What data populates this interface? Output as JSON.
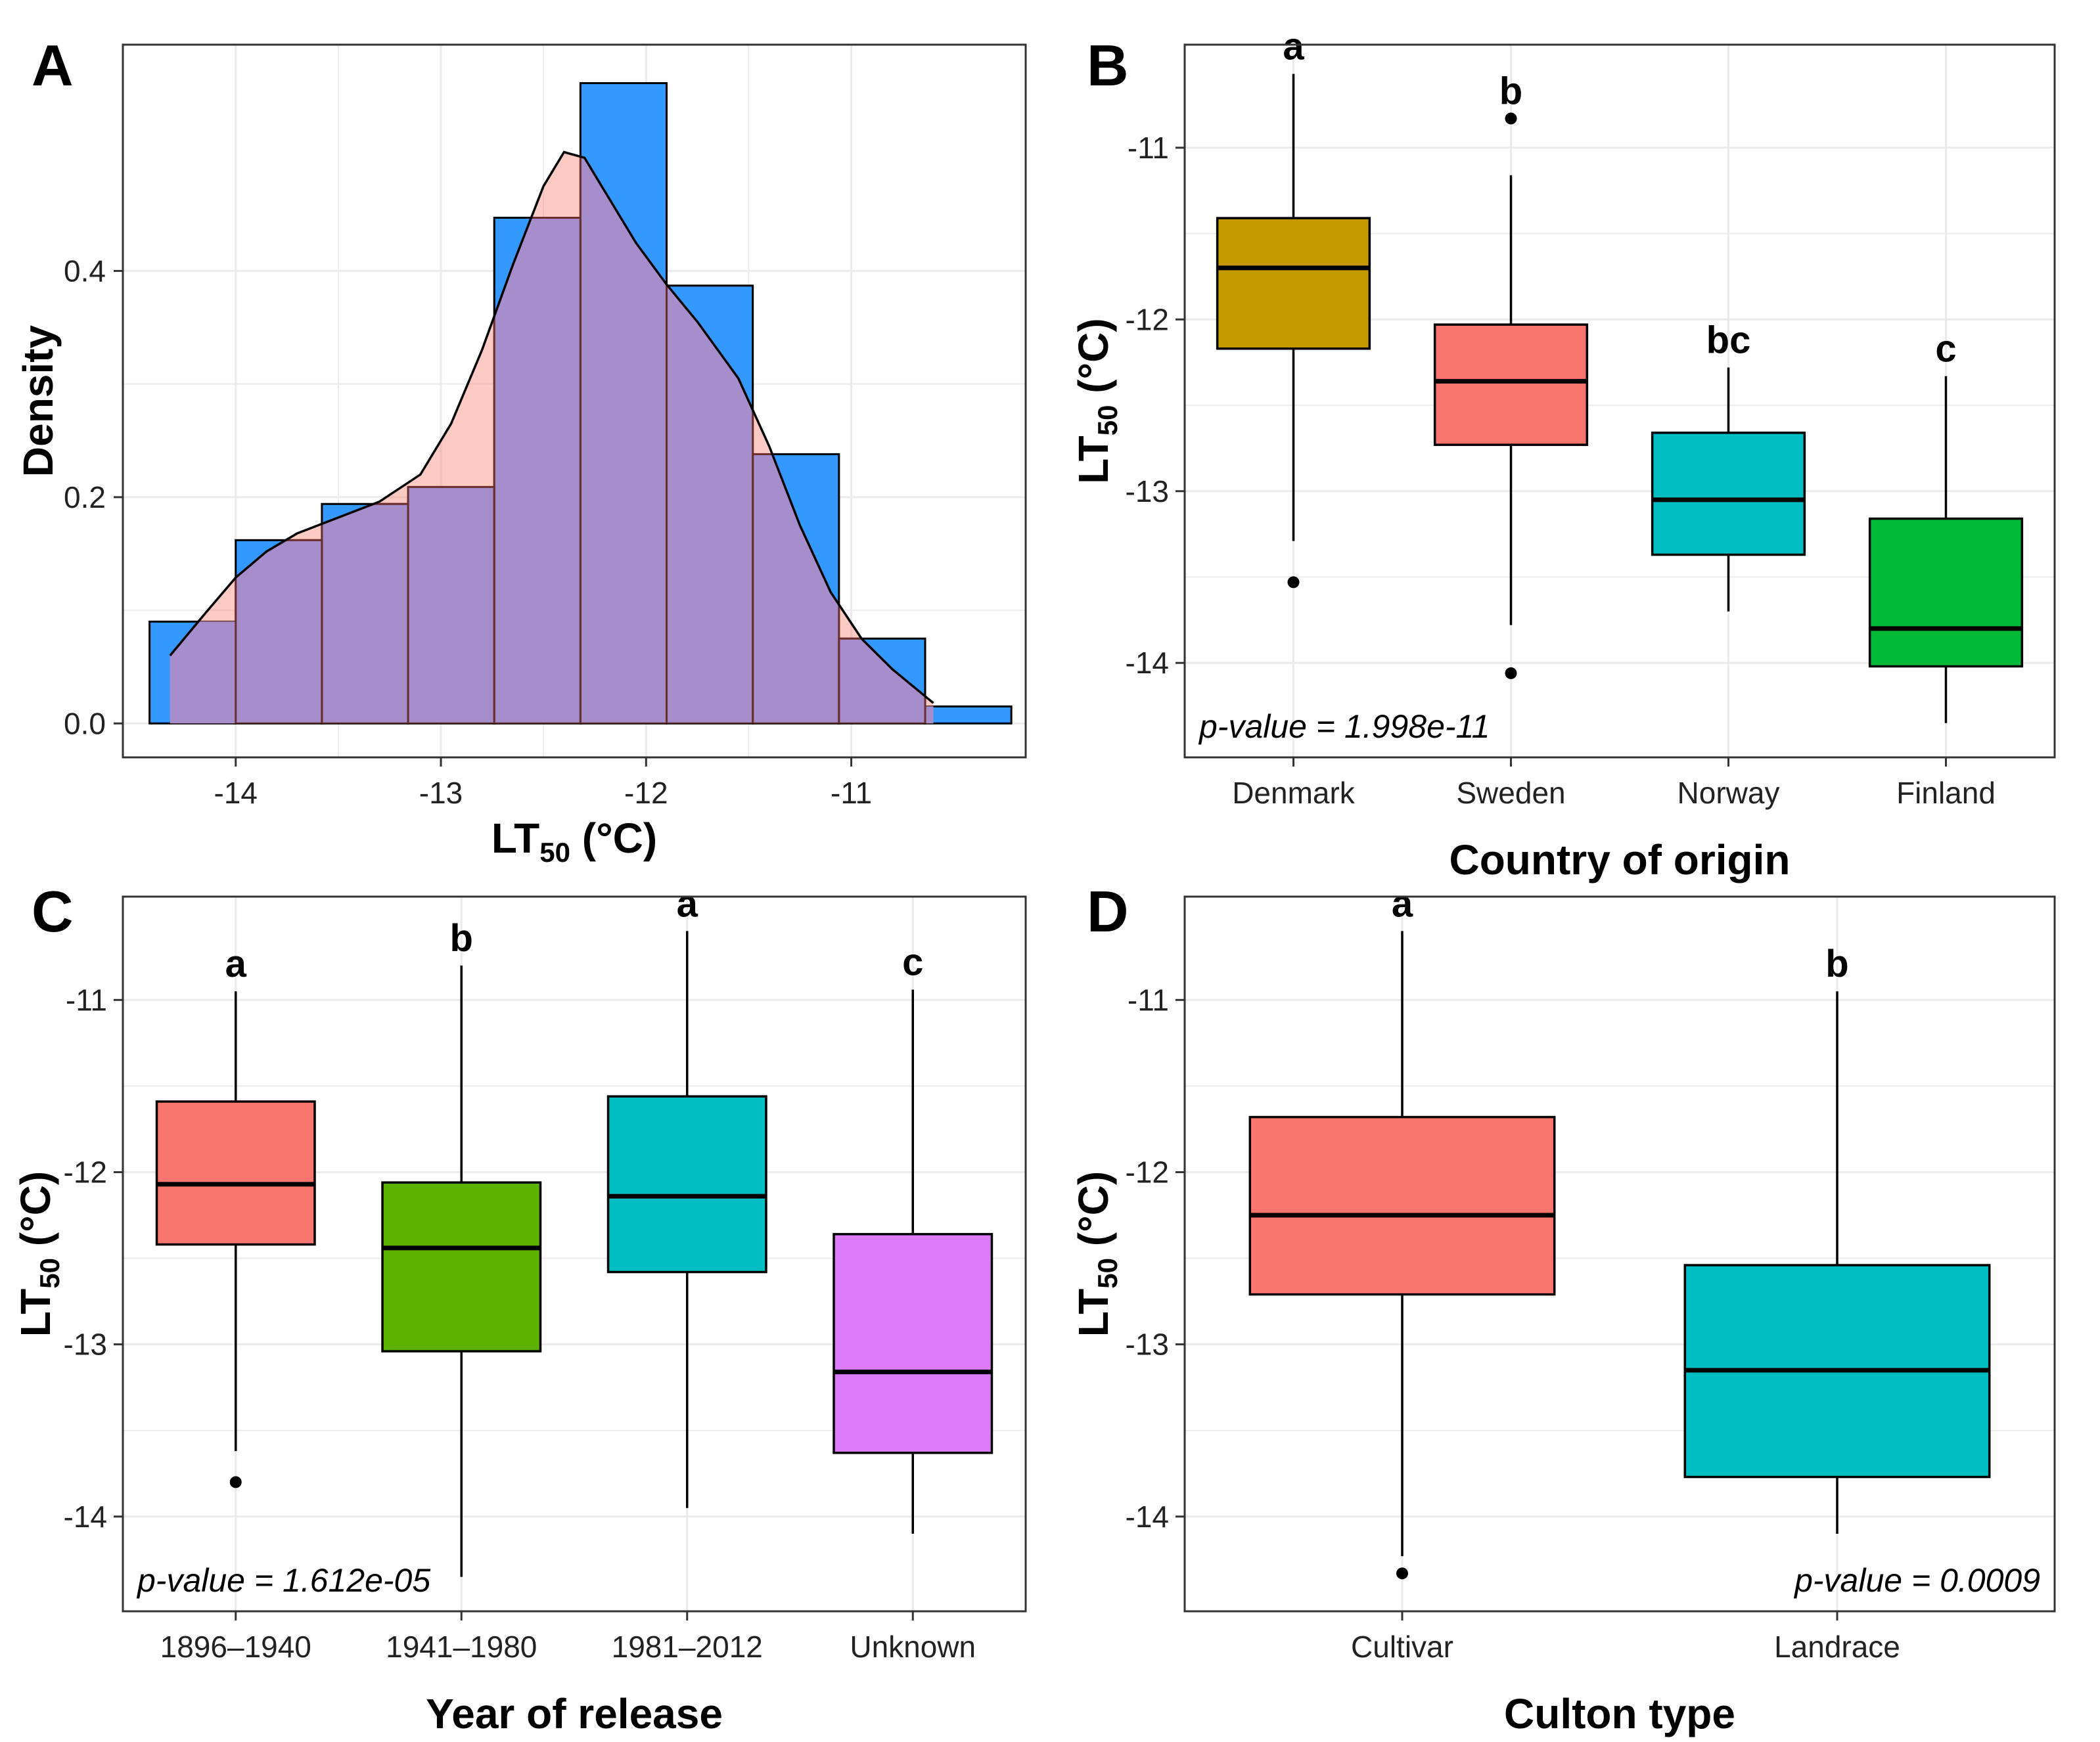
{
  "figure": {
    "panels": [
      "A",
      "B",
      "C",
      "D"
    ]
  },
  "chart_data": [
    {
      "panel": "A",
      "type": "histogram",
      "xlabel": "LT",
      "xlabel_sub": "50",
      "xlabel_unit": " (°C)",
      "ylabel": "Density",
      "xlim": [
        -14.55,
        -10.15
      ],
      "ylim": [
        -0.03,
        0.6
      ],
      "xticks": [
        -14,
        -13,
        -12,
        -11
      ],
      "yticks": [
        0.0,
        0.2,
        0.4
      ],
      "ytick_labels": [
        "0.0",
        "0.2",
        "0.4"
      ],
      "hist_color": "#3399FF",
      "bars": [
        {
          "x0": -14.42,
          "x1": -14.0,
          "density": 0.09
        },
        {
          "x0": -14.0,
          "x1": -13.58,
          "density": 0.162
        },
        {
          "x0": -13.58,
          "x1": -13.16,
          "density": 0.194
        },
        {
          "x0": -13.16,
          "x1": -12.74,
          "density": 0.209
        },
        {
          "x0": -12.74,
          "x1": -12.32,
          "density": 0.447
        },
        {
          "x0": -12.32,
          "x1": -11.9,
          "density": 0.566
        },
        {
          "x0": -11.9,
          "x1": -11.48,
          "density": 0.387
        },
        {
          "x0": -11.48,
          "x1": -11.06,
          "density": 0.238
        },
        {
          "x0": -11.06,
          "x1": -10.64,
          "density": 0.075
        },
        {
          "x0": -10.64,
          "x1": -10.22,
          "density": 0.015
        }
      ],
      "density_curve": {
        "color": "#FA8072",
        "x": [
          -14.32,
          -14.15,
          -14.0,
          -13.85,
          -13.7,
          -13.5,
          -13.3,
          -13.1,
          -12.95,
          -12.8,
          -12.65,
          -12.5,
          -12.4,
          -12.3,
          -12.2,
          -12.05,
          -11.9,
          -11.75,
          -11.55,
          -11.4,
          -11.25,
          -11.1,
          -10.95,
          -10.8,
          -10.6
        ],
        "y": [
          0.06,
          0.097,
          0.129,
          0.152,
          0.168,
          0.182,
          0.196,
          0.22,
          0.265,
          0.33,
          0.405,
          0.475,
          0.505,
          0.5,
          0.47,
          0.425,
          0.388,
          0.355,
          0.305,
          0.245,
          0.175,
          0.116,
          0.075,
          0.048,
          0.018
        ]
      }
    },
    {
      "panel": "B",
      "type": "boxplot",
      "xlabel": "Country of origin",
      "ylabel": "LT",
      "ylabel_sub": "50",
      "ylabel_unit": " (°C)",
      "ylim": [
        -14.55,
        -10.4
      ],
      "yticks": [
        -14,
        -13,
        -12,
        -11
      ],
      "categories": [
        "Denmark",
        "Sweden",
        "Norway",
        "Finland"
      ],
      "boxes": [
        {
          "label": "Denmark",
          "color": "#C49A00",
          "q1": -12.17,
          "median": -11.7,
          "q3": -11.41,
          "whisker_low": -13.29,
          "whisker_high": -10.57,
          "outliers": [
            -13.53
          ],
          "letter": "a"
        },
        {
          "label": "Sweden",
          "color": "#F8766D",
          "q1": -12.73,
          "median": -12.36,
          "q3": -12.03,
          "whisker_low": -13.78,
          "whisker_high": -11.16,
          "outliers": [
            -10.83,
            -14.06
          ],
          "letter": "b"
        },
        {
          "label": "Norway",
          "color": "#00BFC4",
          "q1": -13.37,
          "median": -13.05,
          "q3": -12.66,
          "whisker_low": -13.7,
          "whisker_high": -12.28,
          "outliers": [],
          "letter": "bc"
        },
        {
          "label": "Finland",
          "color": "#00BA38",
          "q1": -14.02,
          "median": -13.8,
          "q3": -13.16,
          "whisker_low": -14.35,
          "whisker_high": -12.33,
          "outliers": [],
          "letter": "c"
        }
      ],
      "annotation": "p-value = 1.998e-11",
      "annotation_pos": "bottom-left"
    },
    {
      "panel": "C",
      "type": "boxplot",
      "xlabel": "Year of release",
      "ylabel": "LT",
      "ylabel_sub": "50",
      "ylabel_unit": " (°C)",
      "ylim": [
        -14.55,
        -10.4
      ],
      "yticks": [
        -14,
        -13,
        -12,
        -11
      ],
      "categories": [
        "1896–1940",
        "1941–1980",
        "1981–2012",
        "Unknown"
      ],
      "boxes": [
        {
          "label": "1896–1940",
          "color": "#F8766D",
          "q1": -12.42,
          "median": -12.07,
          "q3": -11.59,
          "whisker_low": -13.62,
          "whisker_high": -10.95,
          "outliers": [
            -13.8
          ],
          "letter": "a"
        },
        {
          "label": "1941–1980",
          "color": "#5BB300",
          "q1": -13.04,
          "median": -12.44,
          "q3": -12.06,
          "whisker_low": -14.35,
          "whisker_high": -10.8,
          "outliers": [],
          "letter": "b"
        },
        {
          "label": "1981–2012",
          "color": "#00BFC4",
          "q1": -12.58,
          "median": -12.14,
          "q3": -11.56,
          "whisker_low": -13.95,
          "whisker_high": -10.6,
          "outliers": [],
          "letter": "a"
        },
        {
          "label": "Unknown",
          "color": "#DC7BFA",
          "q1": -13.63,
          "median": -13.16,
          "q3": -12.36,
          "whisker_low": -14.1,
          "whisker_high": -10.94,
          "outliers": [],
          "letter": "c"
        }
      ],
      "annotation": "p-value = 1.612e-05",
      "annotation_pos": "bottom-left"
    },
    {
      "panel": "D",
      "type": "boxplot",
      "xlabel": "Culton type",
      "ylabel": "LT",
      "ylabel_sub": "50",
      "ylabel_unit": " (°C)",
      "ylim": [
        -14.55,
        -10.4
      ],
      "yticks": [
        -14,
        -13,
        -12,
        -11
      ],
      "categories": [
        "Cultivar",
        "Landrace"
      ],
      "boxes": [
        {
          "label": "Cultivar",
          "color": "#F8766D",
          "q1": -12.71,
          "median": -12.25,
          "q3": -11.68,
          "whisker_low": -14.23,
          "whisker_high": -10.6,
          "outliers": [
            -14.33
          ],
          "letter": "a"
        },
        {
          "label": "Landrace",
          "color": "#00BFC4",
          "q1": -13.77,
          "median": -13.15,
          "q3": -12.54,
          "whisker_low": -14.1,
          "whisker_high": -10.95,
          "outliers": [],
          "letter": "b"
        }
      ],
      "annotation": "p-value = 0.0009",
      "annotation_pos": "bottom-right"
    }
  ]
}
